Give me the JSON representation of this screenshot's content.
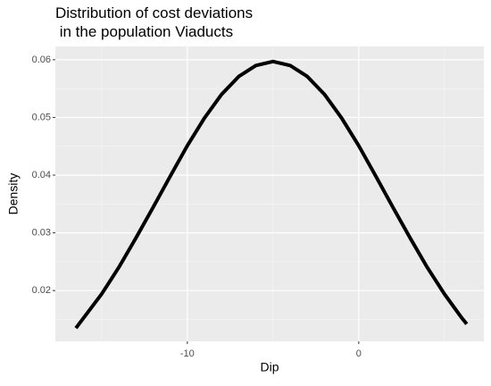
{
  "chart_data": {
    "type": "line",
    "title": [
      "Distribution of cost deviations",
      " in the population Viaducts"
    ],
    "x_label": "Dip",
    "y_label": "Density",
    "x": [
      -16.5,
      -15,
      -14,
      -13,
      -12,
      -11,
      -10,
      -9,
      -8,
      -7,
      -6,
      -5,
      -4,
      -3,
      -2,
      -1,
      0,
      1,
      2,
      3,
      4,
      5,
      6,
      6.3
    ],
    "values": [
      0.0135,
      0.0194,
      0.024,
      0.0291,
      0.0344,
      0.0398,
      0.0451,
      0.0499,
      0.054,
      0.0571,
      0.059,
      0.0597,
      0.059,
      0.0571,
      0.054,
      0.0499,
      0.0451,
      0.0398,
      0.0344,
      0.0291,
      0.024,
      0.0194,
      0.0153,
      0.0142
    ],
    "color": "#000000",
    "xlim": [
      -17.7,
      7.3
    ],
    "xticks": [
      -10,
      0
    ],
    "xminor": [
      -15,
      -5,
      5
    ],
    "ylim": [
      0.0112,
      0.0623
    ],
    "yticks": [
      0.02,
      0.03,
      0.04,
      0.05,
      0.06
    ],
    "yminor": [
      0.015,
      0.025,
      0.035,
      0.045,
      0.055
    ],
    "grid": true
  }
}
